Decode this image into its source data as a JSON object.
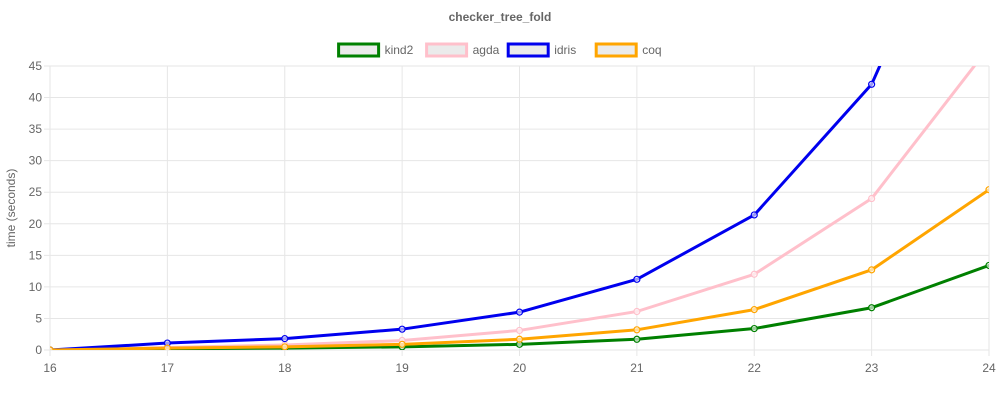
{
  "chart_data": {
    "type": "line",
    "title": "checker_tree_fold",
    "xlabel": "",
    "ylabel": "time (seconds)",
    "x": [
      16,
      17,
      18,
      19,
      20,
      21,
      22,
      23,
      24
    ],
    "ylim": [
      0,
      45
    ],
    "yticks": [
      0,
      5,
      10,
      15,
      20,
      25,
      30,
      35,
      40,
      45
    ],
    "grid": true,
    "legend_position": "top-center",
    "series": [
      {
        "name": "kind2",
        "color": "#008000",
        "values": [
          0,
          0.2,
          0.3,
          0.5,
          0.9,
          1.7,
          3.4,
          6.7,
          13.4
        ]
      },
      {
        "name": "agda",
        "color": "#ffc0cb",
        "values": [
          0,
          0.4,
          0.8,
          1.5,
          3.1,
          6.1,
          12.0,
          24.0,
          48.0
        ]
      },
      {
        "name": "idris",
        "color": "#0000ee",
        "values": [
          0,
          1.1,
          1.8,
          3.3,
          6.0,
          11.2,
          21.4,
          42.1,
          84.0
        ]
      },
      {
        "name": "coq",
        "color": "#ffa500",
        "values": [
          0,
          0.3,
          0.5,
          0.9,
          1.7,
          3.2,
          6.4,
          12.7,
          25.4
        ]
      }
    ]
  }
}
